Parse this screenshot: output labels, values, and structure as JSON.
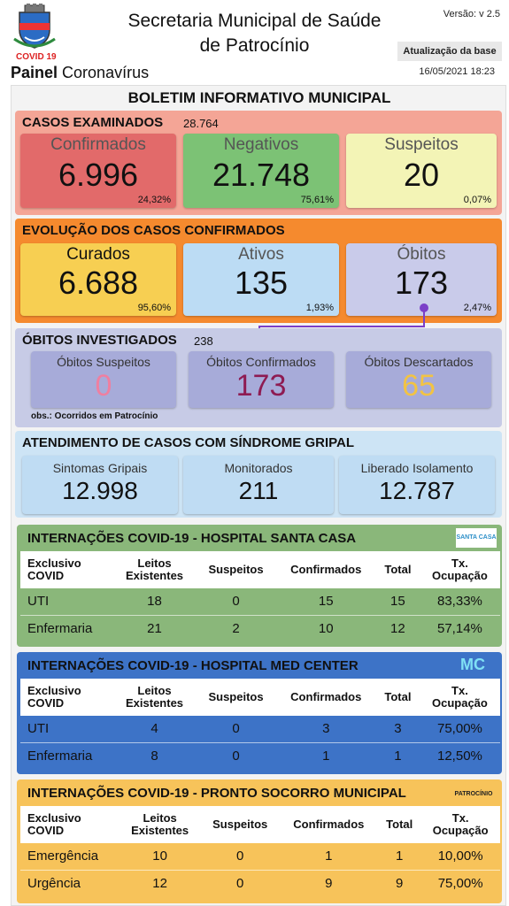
{
  "header": {
    "title_line1": "Secretaria Municipal de Saúde",
    "title_line2": "de Patrocínio",
    "version": "Versão: v 2.5",
    "update_label": "Atualização da base",
    "update_date": "16/05/2021 18:23",
    "covid_label": "COVID 19",
    "painel_bold": "Painel",
    "painel_rest": "Coronavírus"
  },
  "boletim_title": "BOLETIM INFORMATIVO MUNICIPAL",
  "casos_examinados": {
    "title": "CASOS EXAMINADOS",
    "total": "28.764",
    "cards": [
      {
        "label": "Confirmados",
        "value": "6.996",
        "pct": "24,32%"
      },
      {
        "label": "Negativos",
        "value": "21.748",
        "pct": "75,61%"
      },
      {
        "label": "Suspeitos",
        "value": "20",
        "pct": "0,07%"
      }
    ]
  },
  "evolucao": {
    "title": "EVOLUÇÃO DOS CASOS CONFIRMADOS",
    "cards": [
      {
        "label": "Curados",
        "value": "6.688",
        "pct": "95,60%"
      },
      {
        "label": "Ativos",
        "value": "135",
        "pct": "1,93%"
      },
      {
        "label": "Óbitos",
        "value": "173",
        "pct": "2,47%"
      }
    ]
  },
  "obitos_investigados": {
    "title": "ÓBITOS INVESTIGADOS",
    "total": "238",
    "obs": "obs.: Ocorridos em Patrocínio",
    "cards": [
      {
        "label": "Óbitos Suspeitos",
        "value": "0"
      },
      {
        "label": "Óbitos Confirmados",
        "value": "173"
      },
      {
        "label": "Óbitos Descartados",
        "value": "65"
      }
    ]
  },
  "sindrome_gripal": {
    "title": "ATENDIMENTO DE CASOS COM SÍNDROME GRIPAL",
    "cards": [
      {
        "label": "Sintomas Gripais",
        "value": "12.998"
      },
      {
        "label": "Monitorados",
        "value": "211"
      },
      {
        "label": "Liberado Isolamento",
        "value": "12.787"
      }
    ]
  },
  "columns": [
    "Exclusivo COVID",
    "Leitos Existentes",
    "Suspeitos",
    "Confirmados",
    "Total",
    "Tx. Ocupação"
  ],
  "santa_casa": {
    "title": "INTERNAÇÕES COVID-19 - HOSPITAL SANTA CASA",
    "logo": "SANTA CASA",
    "rows": [
      [
        "UTI",
        "18",
        "0",
        "15",
        "15",
        "83,33%"
      ],
      [
        "Enfermaria",
        "21",
        "2",
        "10",
        "12",
        "57,14%"
      ]
    ]
  },
  "med_center": {
    "title": "INTERNAÇÕES COVID-19 - HOSPITAL MED CENTER",
    "logo": "MC",
    "rows": [
      [
        "UTI",
        "4",
        "0",
        "3",
        "3",
        "75,00%"
      ],
      [
        "Enfermaria",
        "8",
        "0",
        "1",
        "1",
        "12,50%"
      ]
    ]
  },
  "pronto_socorro": {
    "title": "INTERNAÇÕES COVID-19 - PRONTO SOCORRO MUNICIPAL",
    "logo": "PATROCÍNIO",
    "rows": [
      [
        "Emergência",
        "10",
        "0",
        "1",
        "1",
        "10,00%"
      ],
      [
        "Urgência",
        "12",
        "0",
        "9",
        "9",
        "75,00%"
      ]
    ]
  },
  "colors": {
    "casos_bg": "#f4a596",
    "evolucao_bg": "#f58a2e",
    "obitos_bg": "#c7cbe6",
    "gripal_bg": "#cde4f5",
    "santa_bg": "#8ab77a",
    "med_bg": "#3d73c7",
    "ps_bg": "#f7c35a"
  }
}
